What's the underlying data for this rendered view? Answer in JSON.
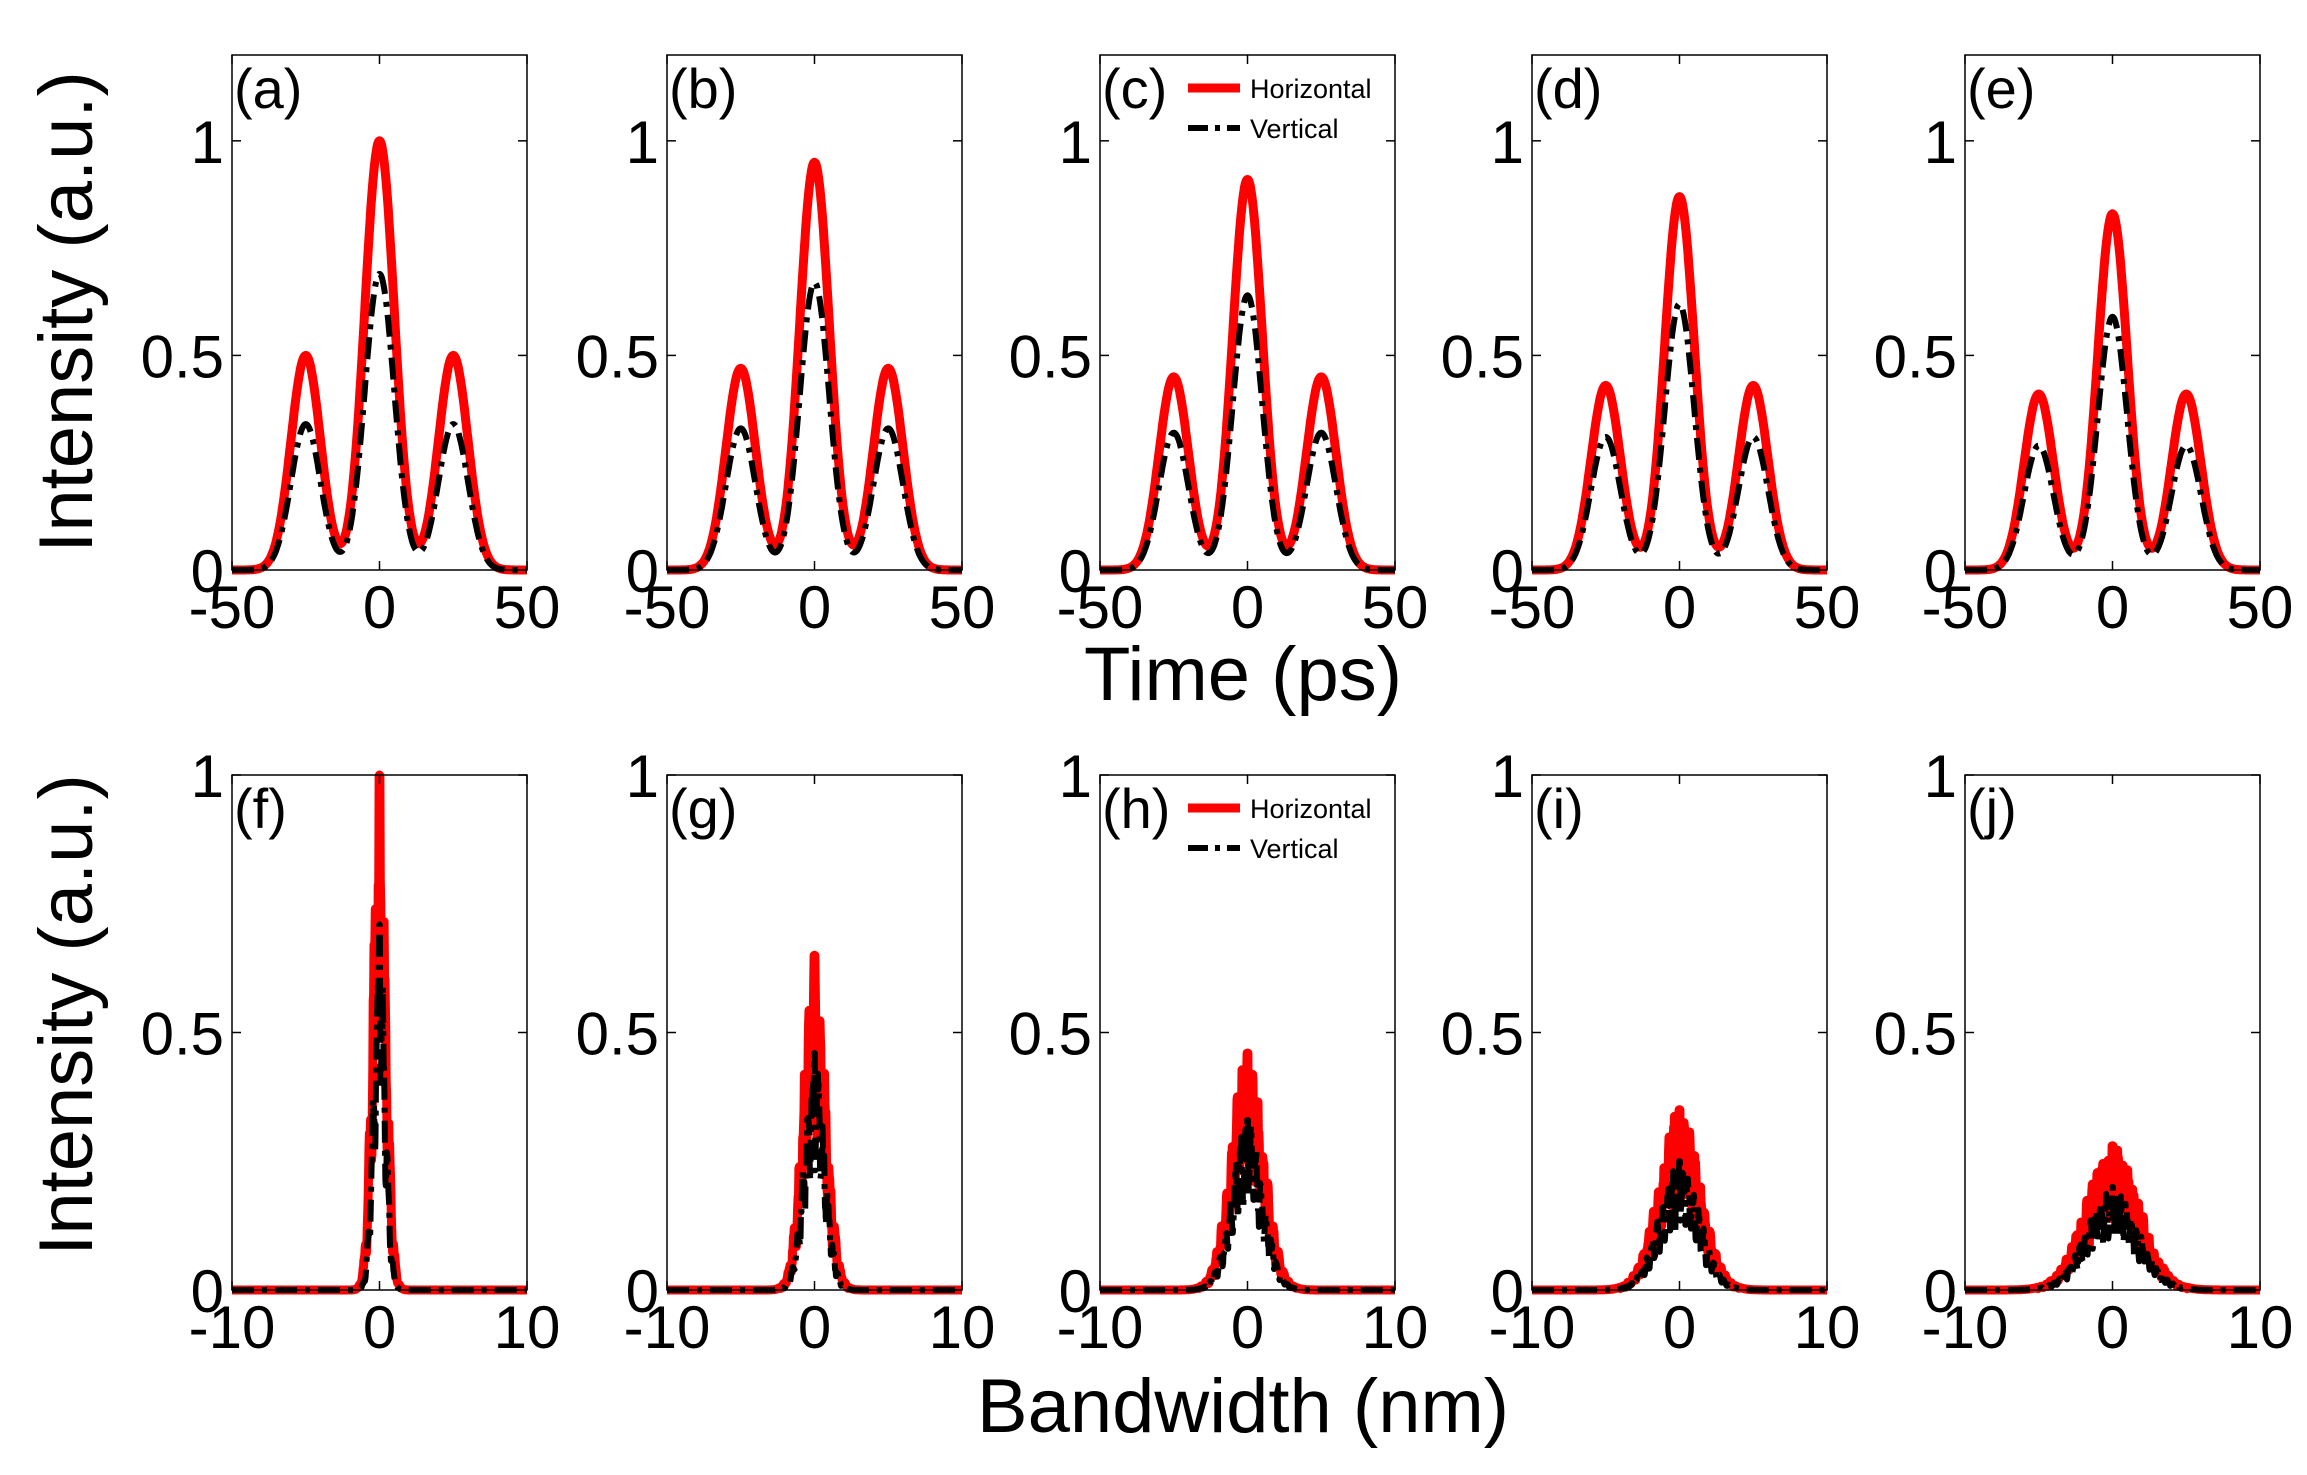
{
  "figure": {
    "ylabel": "Intensity (a.u.)",
    "top_xlabel": "Time (ps)",
    "bottom_xlabel": "Bandwidth (nm)"
  },
  "colors": {
    "horizontal": "#ff0000",
    "vertical": "#000000"
  },
  "legend": {
    "horizontal": "Horizontal",
    "vertical": "Vertical"
  },
  "chart_data": [
    {
      "type": "line",
      "row": "top",
      "label": "(a)",
      "xlim": [
        -50,
        50
      ],
      "ylim": [
        0,
        1.2
      ],
      "xticks": [
        -50,
        0,
        50
      ],
      "yticks": [
        0,
        0.5,
        1
      ],
      "ytick_labels": [
        "0",
        "0.5",
        "1"
      ],
      "series": [
        {
          "name": "Horizontal",
          "peaks": [
            {
              "x": -25,
              "y": 0.5
            },
            {
              "x": 0,
              "y": 1.0
            },
            {
              "x": 25,
              "y": 0.5
            }
          ],
          "width": 5
        },
        {
          "name": "Vertical",
          "peaks": [
            {
              "x": -25,
              "y": 0.34
            },
            {
              "x": 0,
              "y": 0.69
            },
            {
              "x": 25,
              "y": 0.34
            }
          ],
          "width": 5
        }
      ]
    },
    {
      "type": "line",
      "row": "top",
      "label": "(b)",
      "xlim": [
        -50,
        50
      ],
      "ylim": [
        0,
        1.2
      ],
      "xticks": [
        -50,
        0,
        50
      ],
      "yticks": [
        0,
        0.5,
        1
      ],
      "ytick_labels": [
        "0",
        "0.5",
        "1"
      ],
      "series": [
        {
          "name": "Horizontal",
          "peaks": [
            {
              "x": -25,
              "y": 0.47
            },
            {
              "x": 0,
              "y": 0.95
            },
            {
              "x": 25,
              "y": 0.47
            }
          ],
          "width": 5
        },
        {
          "name": "Vertical",
          "peaks": [
            {
              "x": -25,
              "y": 0.33
            },
            {
              "x": 0,
              "y": 0.67
            },
            {
              "x": 25,
              "y": 0.33
            }
          ],
          "width": 5
        }
      ]
    },
    {
      "type": "line",
      "row": "top",
      "label": "(c)",
      "legend": true,
      "xlim": [
        -50,
        50
      ],
      "ylim": [
        0,
        1.2
      ],
      "xticks": [
        -50,
        0,
        50
      ],
      "yticks": [
        0,
        0.5,
        1
      ],
      "ytick_labels": [
        "0",
        "0.5",
        "1"
      ],
      "series": [
        {
          "name": "Horizontal",
          "peaks": [
            {
              "x": -25,
              "y": 0.45
            },
            {
              "x": 0,
              "y": 0.91
            },
            {
              "x": 25,
              "y": 0.45
            }
          ],
          "width": 5
        },
        {
          "name": "Vertical",
          "peaks": [
            {
              "x": -25,
              "y": 0.32
            },
            {
              "x": 0,
              "y": 0.64
            },
            {
              "x": 25,
              "y": 0.32
            }
          ],
          "width": 5
        }
      ]
    },
    {
      "type": "line",
      "row": "top",
      "label": "(d)",
      "xlim": [
        -50,
        50
      ],
      "ylim": [
        0,
        1.2
      ],
      "xticks": [
        -50,
        0,
        50
      ],
      "yticks": [
        0,
        0.5,
        1
      ],
      "ytick_labels": [
        "0",
        "0.5",
        "1"
      ],
      "series": [
        {
          "name": "Horizontal",
          "peaks": [
            {
              "x": -25,
              "y": 0.43
            },
            {
              "x": 0,
              "y": 0.87
            },
            {
              "x": 25,
              "y": 0.43
            }
          ],
          "width": 5
        },
        {
          "name": "Vertical",
          "peaks": [
            {
              "x": -25,
              "y": 0.31
            },
            {
              "x": 0,
              "y": 0.62
            },
            {
              "x": 25,
              "y": 0.31
            }
          ],
          "width": 5
        }
      ]
    },
    {
      "type": "line",
      "row": "top",
      "label": "(e)",
      "xlim": [
        -50,
        50
      ],
      "ylim": [
        0,
        1.2
      ],
      "xticks": [
        -50,
        0,
        50
      ],
      "yticks": [
        0,
        0.5,
        1
      ],
      "ytick_labels": [
        "0",
        "0.5",
        "1"
      ],
      "series": [
        {
          "name": "Horizontal",
          "peaks": [
            {
              "x": -25,
              "y": 0.41
            },
            {
              "x": 0,
              "y": 0.83
            },
            {
              "x": 25,
              "y": 0.41
            }
          ],
          "width": 5
        },
        {
          "name": "Vertical",
          "peaks": [
            {
              "x": -25,
              "y": 0.29
            },
            {
              "x": 0,
              "y": 0.59
            },
            {
              "x": 25,
              "y": 0.29
            }
          ],
          "width": 5
        }
      ]
    },
    {
      "type": "line",
      "row": "bottom",
      "label": "(f)",
      "xlim": [
        -10,
        10
      ],
      "ylim": [
        0,
        1
      ],
      "xticks": [
        -10,
        0,
        10
      ],
      "yticks": [
        0,
        0.5,
        1
      ],
      "ytick_labels": [
        "0",
        "0.5",
        "1"
      ],
      "series": [
        {
          "name": "Horizontal",
          "center": 0,
          "peak": 1.0,
          "sigma": 0.45
        },
        {
          "name": "Vertical",
          "center": 0,
          "peak": 0.71,
          "sigma": 0.4
        }
      ]
    },
    {
      "type": "line",
      "row": "bottom",
      "label": "(g)",
      "xlim": [
        -10,
        10
      ],
      "ylim": [
        0,
        1
      ],
      "xticks": [
        -10,
        0,
        10
      ],
      "yticks": [
        0,
        0.5,
        1
      ],
      "ytick_labels": [
        "0",
        "0.5",
        "1"
      ],
      "series": [
        {
          "name": "Horizontal",
          "center": 0,
          "peak": 0.65,
          "sigma": 0.75
        },
        {
          "name": "Vertical",
          "center": 0,
          "peak": 0.46,
          "sigma": 0.7
        }
      ]
    },
    {
      "type": "line",
      "row": "bottom",
      "label": "(h)",
      "legend": true,
      "xlim": [
        -10,
        10
      ],
      "ylim": [
        0,
        1
      ],
      "xticks": [
        -10,
        0,
        10
      ],
      "yticks": [
        0,
        0.5,
        1
      ],
      "ytick_labels": [
        "0",
        "0.5",
        "1"
      ],
      "series": [
        {
          "name": "Horizontal",
          "center": 0,
          "peak": 0.46,
          "sigma": 1.1
        },
        {
          "name": "Vertical",
          "center": 0,
          "peak": 0.33,
          "sigma": 1.05
        }
      ]
    },
    {
      "type": "line",
      "row": "bottom",
      "label": "(i)",
      "xlim": [
        -10,
        10
      ],
      "ylim": [
        0,
        1
      ],
      "xticks": [
        -10,
        0,
        10
      ],
      "yticks": [
        0,
        0.5,
        1
      ],
      "ytick_labels": [
        "0",
        "0.5",
        "1"
      ],
      "series": [
        {
          "name": "Horizontal",
          "center": 0,
          "peak": 0.35,
          "sigma": 1.4
        },
        {
          "name": "Vertical",
          "center": 0,
          "peak": 0.25,
          "sigma": 1.35
        }
      ]
    },
    {
      "type": "line",
      "row": "bottom",
      "label": "(j)",
      "xlim": [
        -10,
        10
      ],
      "ylim": [
        0,
        1
      ],
      "xticks": [
        -10,
        0,
        10
      ],
      "yticks": [
        0,
        0.5,
        1
      ],
      "ytick_labels": [
        "0",
        "0.5",
        "1"
      ],
      "series": [
        {
          "name": "Horizontal",
          "center": 0,
          "peak": 0.28,
          "sigma": 1.8
        },
        {
          "name": "Vertical",
          "center": 0,
          "peak": 0.2,
          "sigma": 1.75
        }
      ]
    }
  ]
}
